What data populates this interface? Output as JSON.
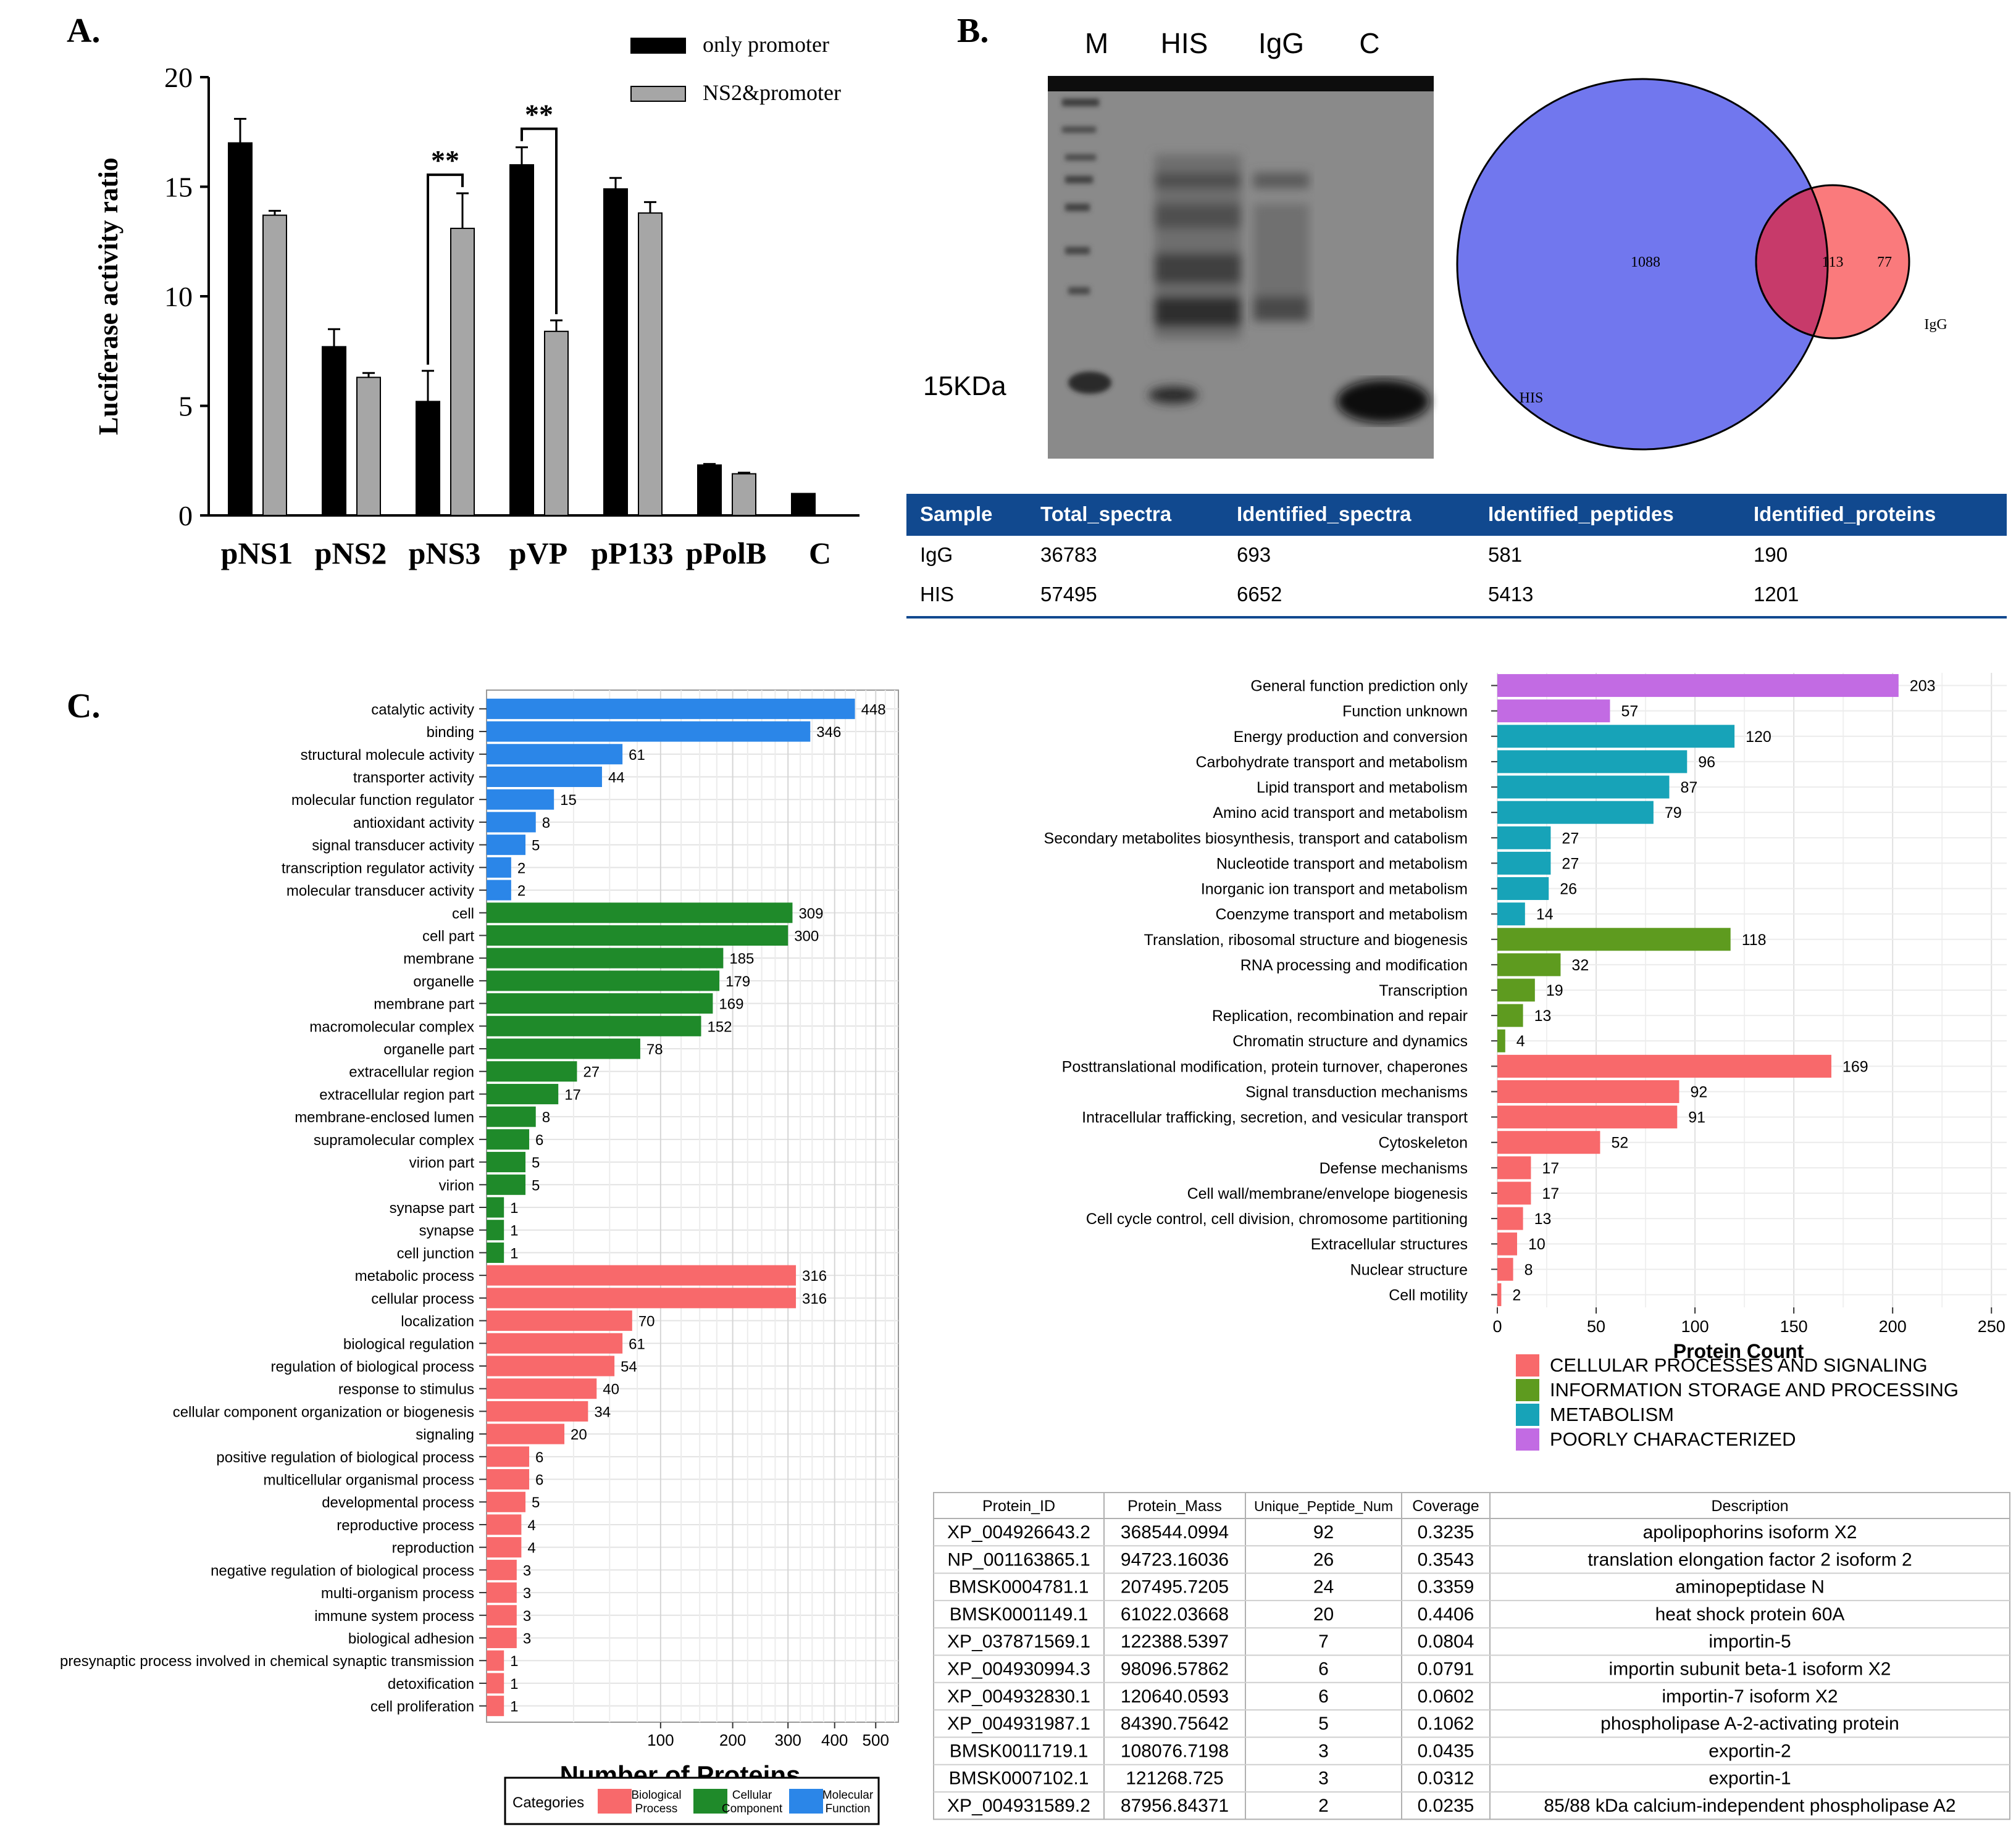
{
  "panels": {
    "a_label": "A.",
    "b_label": "B.",
    "c_label": "C."
  },
  "chart_data": [
    {
      "id": "luciferase",
      "type": "bar",
      "title": "",
      "ylabel": "Luciferase activity ratio",
      "xlabel": "",
      "ylim": [
        0,
        20
      ],
      "yticks": [
        0,
        5,
        10,
        15,
        20
      ],
      "categories": [
        "pNS1",
        "pNS2",
        "pNS3",
        "pVP",
        "pP133",
        "pPolB",
        "C"
      ],
      "series": [
        {
          "name": "only promoter",
          "color": "#000000",
          "values": [
            17.0,
            7.7,
            5.2,
            16.0,
            14.9,
            2.3,
            1.0
          ],
          "errors": [
            1.1,
            0.8,
            1.4,
            0.8,
            0.5,
            0.05,
            0.0
          ]
        },
        {
          "name": "NS2&promoter",
          "color": "#a6a6a6",
          "values": [
            13.7,
            6.3,
            13.1,
            8.4,
            13.8,
            1.9,
            null
          ],
          "errors": [
            0.2,
            0.2,
            1.6,
            0.5,
            0.5,
            0.05,
            null
          ]
        }
      ],
      "significance": [
        {
          "category": "pNS3",
          "label": "**"
        },
        {
          "category": "pVP",
          "label": "**"
        }
      ]
    },
    {
      "id": "venn",
      "type": "venn",
      "sets": [
        {
          "name": "HIS",
          "only": "1088",
          "color": "#6c73ef"
        },
        {
          "name": "IgG",
          "only": "77",
          "color": "#fa6a6e"
        }
      ],
      "intersection": "113"
    },
    {
      "id": "go",
      "type": "bar",
      "orientation": "horizontal",
      "xlabel": "Number of Proteins",
      "xscale": "sqrt",
      "xlim": [
        0,
        560
      ],
      "xticks": [
        100,
        200,
        300,
        400,
        500
      ],
      "legend_title": "Categories",
      "legend": [
        {
          "name": "Biological Process",
          "color": "#f8696b"
        },
        {
          "name": "Cellular Component",
          "color": "#1f8a2a"
        },
        {
          "name": "Molecular Function",
          "color": "#2b86e8"
        }
      ],
      "categories": [
        "catalytic activity",
        "binding",
        "structural molecule activity",
        "transporter activity",
        "molecular function regulator",
        "antioxidant activity",
        "signal transducer activity",
        "transcription regulator activity",
        "molecular transducer activity",
        "cell",
        "cell part",
        "membrane",
        "organelle",
        "membrane part",
        "macromolecular complex",
        "organelle part",
        "extracellular region",
        "extracellular region part",
        "membrane-enclosed lumen",
        "supramolecular complex",
        "virion part",
        "virion",
        "synapse part",
        "synapse",
        "cell junction",
        "metabolic process",
        "cellular process",
        "localization",
        "biological regulation",
        "regulation of biological process",
        "response to stimulus",
        "cellular component organization or biogenesis",
        "signaling",
        "positive regulation of biological process",
        "multicellular organismal process",
        "developmental process",
        "reproductive process",
        "reproduction",
        "negative regulation of biological process",
        "multi-organism process",
        "immune system process",
        "biological adhesion",
        "presynaptic process involved in chemical synaptic transmission",
        "detoxification",
        "cell proliferation"
      ],
      "values": [
        448,
        346,
        61,
        44,
        15,
        8,
        5,
        2,
        2,
        309,
        300,
        185,
        179,
        169,
        152,
        78,
        27,
        17,
        8,
        6,
        5,
        5,
        1,
        1,
        1,
        316,
        316,
        70,
        61,
        54,
        40,
        34,
        20,
        6,
        6,
        5,
        4,
        4,
        3,
        3,
        3,
        3,
        1,
        1,
        1
      ],
      "groups": [
        "MF",
        "MF",
        "MF",
        "MF",
        "MF",
        "MF",
        "MF",
        "MF",
        "MF",
        "CC",
        "CC",
        "CC",
        "CC",
        "CC",
        "CC",
        "CC",
        "CC",
        "CC",
        "CC",
        "CC",
        "CC",
        "CC",
        "CC",
        "CC",
        "CC",
        "BP",
        "BP",
        "BP",
        "BP",
        "BP",
        "BP",
        "BP",
        "BP",
        "BP",
        "BP",
        "BP",
        "BP",
        "BP",
        "BP",
        "BP",
        "BP",
        "BP",
        "BP",
        "BP",
        "BP"
      ],
      "group_colors": {
        "MF": "#2b86e8",
        "CC": "#1f8a2a",
        "BP": "#f8696b"
      }
    },
    {
      "id": "cog",
      "type": "bar",
      "orientation": "horizontal",
      "xlabel": "Protein Count",
      "xlim": [
        0,
        250
      ],
      "xticks": [
        0,
        50,
        100,
        150,
        200,
        250
      ],
      "legend": [
        {
          "name": "CELLULAR PROCESSES AND SIGNALING",
          "color": "#f8696b"
        },
        {
          "name": "INFORMATION STORAGE AND PROCESSING",
          "color": "#5e9b1f"
        },
        {
          "name": "METABOLISM",
          "color": "#17a3b8"
        },
        {
          "name": "POORLY CHARACTERIZED",
          "color": "#c26be3"
        }
      ],
      "categories": [
        "General function prediction only",
        "Function unknown",
        "Energy production and conversion",
        "Carbohydrate transport and metabolism",
        "Lipid transport and metabolism",
        "Amino acid transport and metabolism",
        "Secondary metabolites biosynthesis, transport and catabolism",
        "Nucleotide transport and metabolism",
        "Inorganic ion transport and metabolism",
        "Coenzyme transport and metabolism",
        "Translation, ribosomal structure and biogenesis",
        "RNA processing and modification",
        "Transcription",
        "Replication, recombination and repair",
        "Chromatin structure and dynamics",
        "Posttranslational modification, protein turnover, chaperones",
        "Signal transduction mechanisms",
        "Intracellular trafficking, secretion, and vesicular transport",
        "Cytoskeleton",
        "Defense mechanisms",
        "Cell wall/membrane/envelope biogenesis",
        "Cell cycle control, cell division, chromosome partitioning",
        "Extracellular structures",
        "Nuclear structure",
        "Cell motility"
      ],
      "values": [
        203,
        57,
        120,
        96,
        87,
        79,
        27,
        27,
        26,
        14,
        118,
        32,
        19,
        13,
        4,
        169,
        92,
        91,
        52,
        17,
        17,
        13,
        10,
        8,
        2
      ],
      "groups": [
        "P",
        "P",
        "M",
        "M",
        "M",
        "M",
        "M",
        "M",
        "M",
        "M",
        "I",
        "I",
        "I",
        "I",
        "I",
        "C",
        "C",
        "C",
        "C",
        "C",
        "C",
        "C",
        "C",
        "C",
        "C"
      ],
      "group_colors": {
        "P": "#c26be3",
        "M": "#17a3b8",
        "I": "#5e9b1f",
        "C": "#f8696b"
      }
    }
  ],
  "gel": {
    "lanes": [
      "M",
      "HIS",
      "IgG",
      "C"
    ],
    "marker_label": "15KDa"
  },
  "spectra_table": {
    "headers": [
      "Sample",
      "Total_spectra",
      "Identified_spectra",
      "Identified_peptides",
      "Identified_proteins"
    ],
    "rows": [
      [
        "IgG",
        "36783",
        "693",
        "581",
        "190"
      ],
      [
        "HIS",
        "57495",
        "6652",
        "5413",
        "1201"
      ]
    ]
  },
  "protein_table": {
    "headers": [
      "Protein_ID",
      "Protein_Mass",
      "Unique_Peptide_Num",
      "Coverage",
      "Description"
    ],
    "rows": [
      [
        "XP_004926643.2",
        "368544.0994",
        "92",
        "0.3235",
        "apolipophorins isoform X2"
      ],
      [
        "NP_001163865.1",
        "94723.16036",
        "26",
        "0.3543",
        "translation elongation factor 2 isoform 2"
      ],
      [
        "BMSK0004781.1",
        "207495.7205",
        "24",
        "0.3359",
        "aminopeptidase N"
      ],
      [
        "BMSK0001149.1",
        "61022.03668",
        "20",
        "0.4406",
        "heat shock protein 60A"
      ],
      [
        "XP_037871569.1",
        "122388.5397",
        "7",
        "0.0804",
        "importin-5"
      ],
      [
        "XP_004930994.3",
        "98096.57862",
        "6",
        "0.0791",
        "importin subunit beta-1 isoform X2"
      ],
      [
        "XP_004932830.1",
        "120640.0593",
        "6",
        "0.0602",
        "importin-7 isoform X2"
      ],
      [
        "XP_004931987.1",
        "84390.75642",
        "5",
        "0.1062",
        "phospholipase A-2-activating protein"
      ],
      [
        "BMSK0011719.1",
        "108076.7198",
        "3",
        "0.0435",
        "exportin-2"
      ],
      [
        "BMSK0007102.1",
        "121268.725",
        "3",
        "0.0312",
        "exportin-1"
      ],
      [
        "XP_004931589.2",
        "87956.84371",
        "2",
        "0.0235",
        "85/88 kDa calcium-independent phospholipase A2"
      ]
    ]
  }
}
